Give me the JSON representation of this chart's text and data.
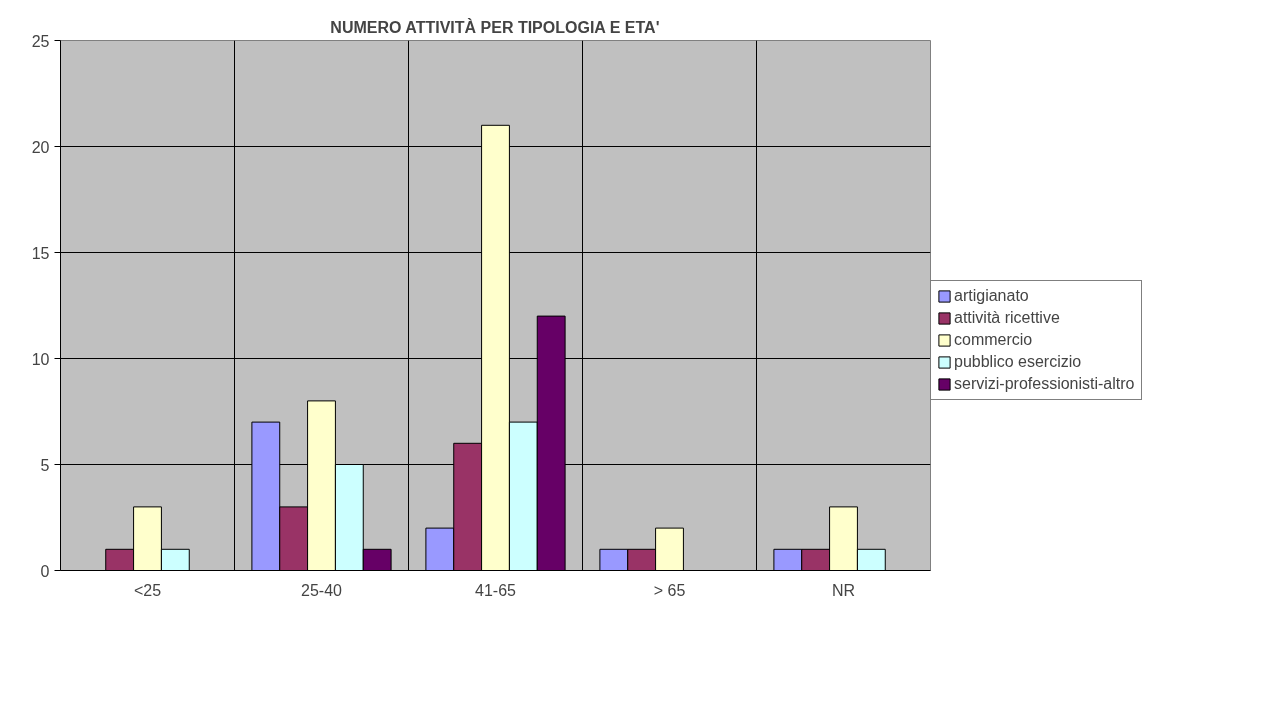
{
  "chart_data": {
    "type": "bar",
    "title": "NUMERO ATTIVITÀ PER TIPOLOGIA E ETA'",
    "categories": [
      "<25",
      "25-40",
      "41-65",
      "> 65",
      "NR"
    ],
    "series": [
      {
        "name": "artigianato",
        "color": "#9999ff",
        "values": [
          null,
          7,
          2,
          1,
          1
        ]
      },
      {
        "name": "attività ricettive",
        "color": "#993366",
        "values": [
          1,
          3,
          6,
          1,
          1
        ]
      },
      {
        "name": "commercio",
        "color": "#ffffcc",
        "values": [
          3,
          8,
          21,
          2,
          3
        ]
      },
      {
        "name": "pubblico esercizio",
        "color": "#ccffff",
        "values": [
          1,
          5,
          7,
          null,
          1
        ]
      },
      {
        "name": "servizi-professionisti-altro",
        "color": "#660066",
        "values": [
          null,
          1,
          12,
          null,
          null
        ]
      }
    ],
    "ylim": [
      0,
      25
    ],
    "yticks": [
      0,
      5,
      10,
      15,
      20,
      25
    ],
    "grid": true,
    "legend": "right"
  }
}
